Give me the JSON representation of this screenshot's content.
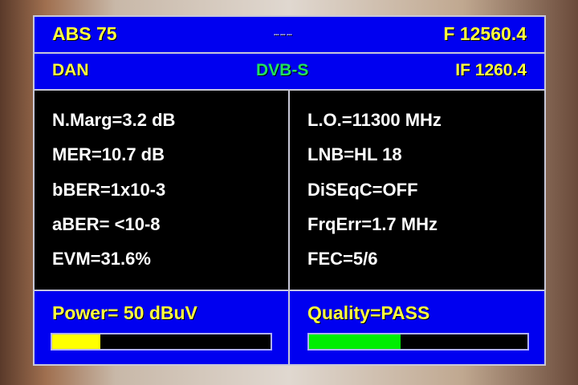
{
  "header": {
    "satellite": "ABS 75",
    "indicator": "▪▪▪ ▪▪▪ ▪▪▪",
    "frequency": "F 12560.4"
  },
  "subheader": {
    "transponder": "DAN",
    "standard": "DVB-S",
    "if_freq": "IF 1260.4"
  },
  "left_params": [
    "N.Marg=3.2 dB",
    "MER=10.7 dB",
    "bBER=1x10-3",
    "aBER= <10-8",
    "EVM=31.6%"
  ],
  "right_params": [
    "L.O.=11300 MHz",
    "LNB=HL 18",
    "DiSEqC=OFF",
    "FrqErr=1.7 MHz",
    "FEC=5/6"
  ],
  "power": {
    "label": "Power= 50 dBuV",
    "level_percent": 22,
    "color": "#ffff00"
  },
  "quality": {
    "label": "Quality=PASS",
    "level_percent": 42,
    "color": "#00ee00"
  },
  "colors": {
    "panel": "#0000f0",
    "text": "#ffff40",
    "standard": "#20e060"
  }
}
